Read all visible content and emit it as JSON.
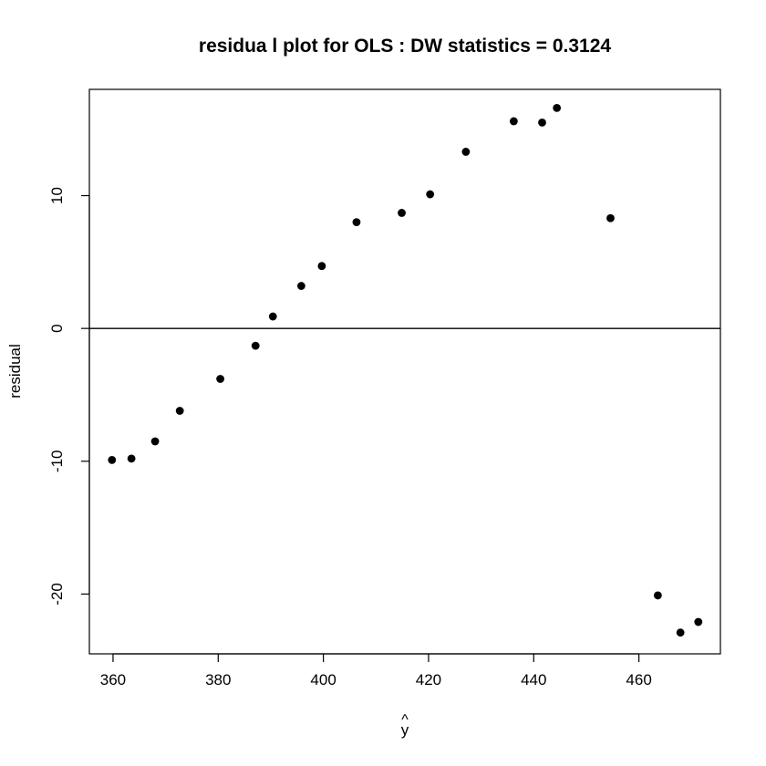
{
  "chart_data": {
    "type": "scatter",
    "title": "residua l plot for OLS : DW statistics = 0.3124",
    "xlabel": "y",
    "xlabel_accent": "^",
    "ylabel": "residual",
    "xlim": [
      355.5,
      475.5
    ],
    "ylim": [
      -24.5,
      18.0
    ],
    "x_ticks": [
      360,
      380,
      400,
      420,
      440,
      460
    ],
    "y_ticks": [
      -20,
      -10,
      0,
      10
    ],
    "reference_line_y": 0,
    "grid": false,
    "point_color": "#000000",
    "points": [
      {
        "x": 359.8,
        "y": -9.9
      },
      {
        "x": 363.5,
        "y": -9.8
      },
      {
        "x": 368.0,
        "y": -8.5
      },
      {
        "x": 372.7,
        "y": -6.2
      },
      {
        "x": 380.4,
        "y": -3.8
      },
      {
        "x": 387.1,
        "y": -1.3
      },
      {
        "x": 390.4,
        "y": 0.9
      },
      {
        "x": 395.8,
        "y": 3.2
      },
      {
        "x": 399.7,
        "y": 4.7
      },
      {
        "x": 406.3,
        "y": 8.0
      },
      {
        "x": 414.9,
        "y": 8.7
      },
      {
        "x": 420.3,
        "y": 10.1
      },
      {
        "x": 427.1,
        "y": 13.3
      },
      {
        "x": 436.2,
        "y": 15.6
      },
      {
        "x": 441.6,
        "y": 15.5
      },
      {
        "x": 444.4,
        "y": 16.6
      },
      {
        "x": 454.6,
        "y": 8.3
      },
      {
        "x": 463.6,
        "y": -20.1
      },
      {
        "x": 467.9,
        "y": -22.9
      },
      {
        "x": 471.3,
        "y": -22.1
      }
    ]
  }
}
